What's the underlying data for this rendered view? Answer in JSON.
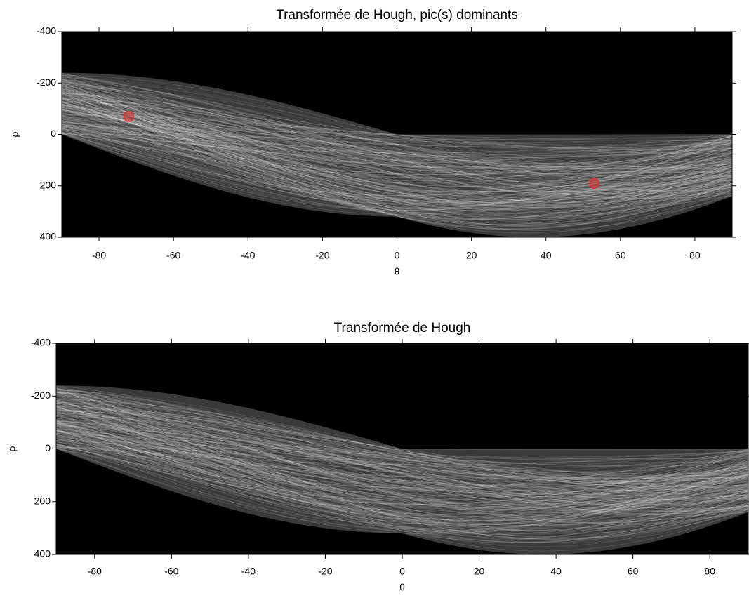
{
  "chart_data": [
    {
      "type": "image",
      "title": "Transformée de Hough, pic(s) dominants",
      "x_label": "θ",
      "y_label": "ρ",
      "xlim": [
        -90,
        90
      ],
      "xticks": [
        -80,
        -60,
        -40,
        -20,
        0,
        20,
        40,
        60,
        80
      ],
      "ylim": [
        -400,
        400
      ],
      "yticks": [
        -400,
        -200,
        0,
        200,
        400
      ],
      "y_reversed": true,
      "points": {
        "x": [
          -72,
          53
        ],
        "y": [
          -70,
          190
        ],
        "color": "#e03030"
      }
    },
    {
      "type": "image",
      "title": "Transformée de Hough",
      "x_label": "θ",
      "y_label": "ρ",
      "xlim": [
        -90,
        90
      ],
      "xticks": [
        -80,
        -60,
        -40,
        -20,
        0,
        20,
        40,
        60,
        80
      ],
      "ylim": [
        -400,
        400
      ],
      "yticks": [
        -400,
        -200,
        0,
        200,
        400
      ],
      "y_reversed": true
    }
  ]
}
